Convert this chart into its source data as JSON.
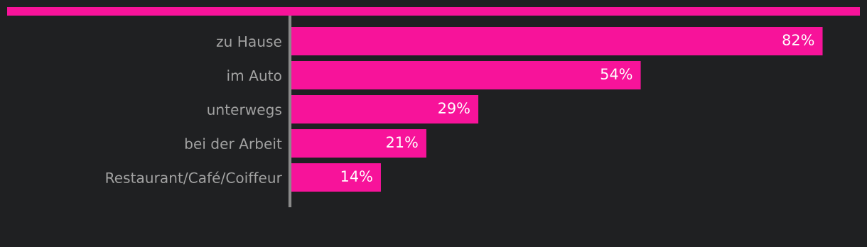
{
  "chart_data": {
    "type": "bar",
    "orientation": "horizontal",
    "categories": [
      "zu Hause",
      "im Auto",
      "unterwegs",
      "bei der Arbeit",
      "Restaurant/Café/Coiffeur"
    ],
    "values": [
      82,
      54,
      29,
      21,
      14
    ],
    "value_labels": [
      "82%",
      "54%",
      "29%",
      "21%",
      "14%"
    ],
    "color": "#f7139a",
    "grid": false,
    "legend": false,
    "tick_labels": "y"
  }
}
